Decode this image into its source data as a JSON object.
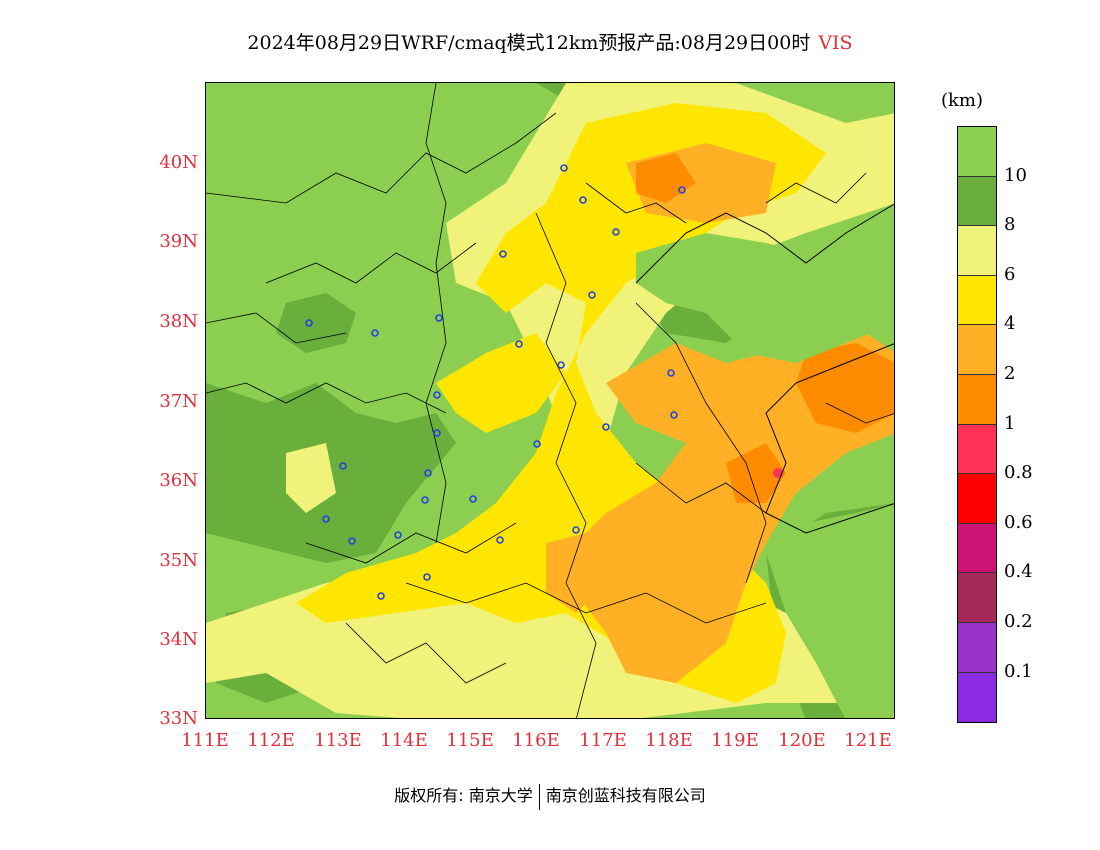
{
  "title": {
    "text": "2024年08月29日WRF/cmaq模式12km预报产品:08月29日00时",
    "variable": "VIS"
  },
  "axes": {
    "lat_labels": [
      "40N",
      "39N",
      "38N",
      "37N",
      "36N",
      "35N",
      "34N",
      "33N"
    ],
    "lon_labels": [
      "111E",
      "112E",
      "113E",
      "114E",
      "115E",
      "116E",
      "117E",
      "118E",
      "119E",
      "120E",
      "121E"
    ]
  },
  "legend": {
    "unit": "(km)",
    "bins": [
      {
        "color": "#8ccf50"
      },
      {
        "color": "#6aae3c"
      },
      {
        "color": "#f0f27a"
      },
      {
        "color": "#ffe600"
      },
      {
        "color": "#ffb025"
      },
      {
        "color": "#ff8c00"
      },
      {
        "color": "#ff3355"
      },
      {
        "color": "#ff0000"
      },
      {
        "color": "#cc1177"
      },
      {
        "color": "#a52a5a"
      },
      {
        "color": "#9933cc"
      },
      {
        "color": "#8a2be2"
      }
    ],
    "labels": [
      "10",
      "8",
      "6",
      "4",
      "2",
      "1",
      "0.8",
      "0.6",
      "0.4",
      "0.2",
      "0.1"
    ]
  },
  "credit": {
    "owner": "版权所有: 南京大学",
    "company": "南京创蓝科技有限公司"
  },
  "colors": {
    "sea": "#8ccf50",
    "land_clear": "#8ccf50",
    "land_8": "#6aae3c",
    "land_6": "#f0f27a",
    "land_4": "#ffe600",
    "land_2": "#ffb025",
    "land_1": "#ff8c00",
    "axis_label": "#e0303a",
    "city_marker": "#2244dd"
  }
}
